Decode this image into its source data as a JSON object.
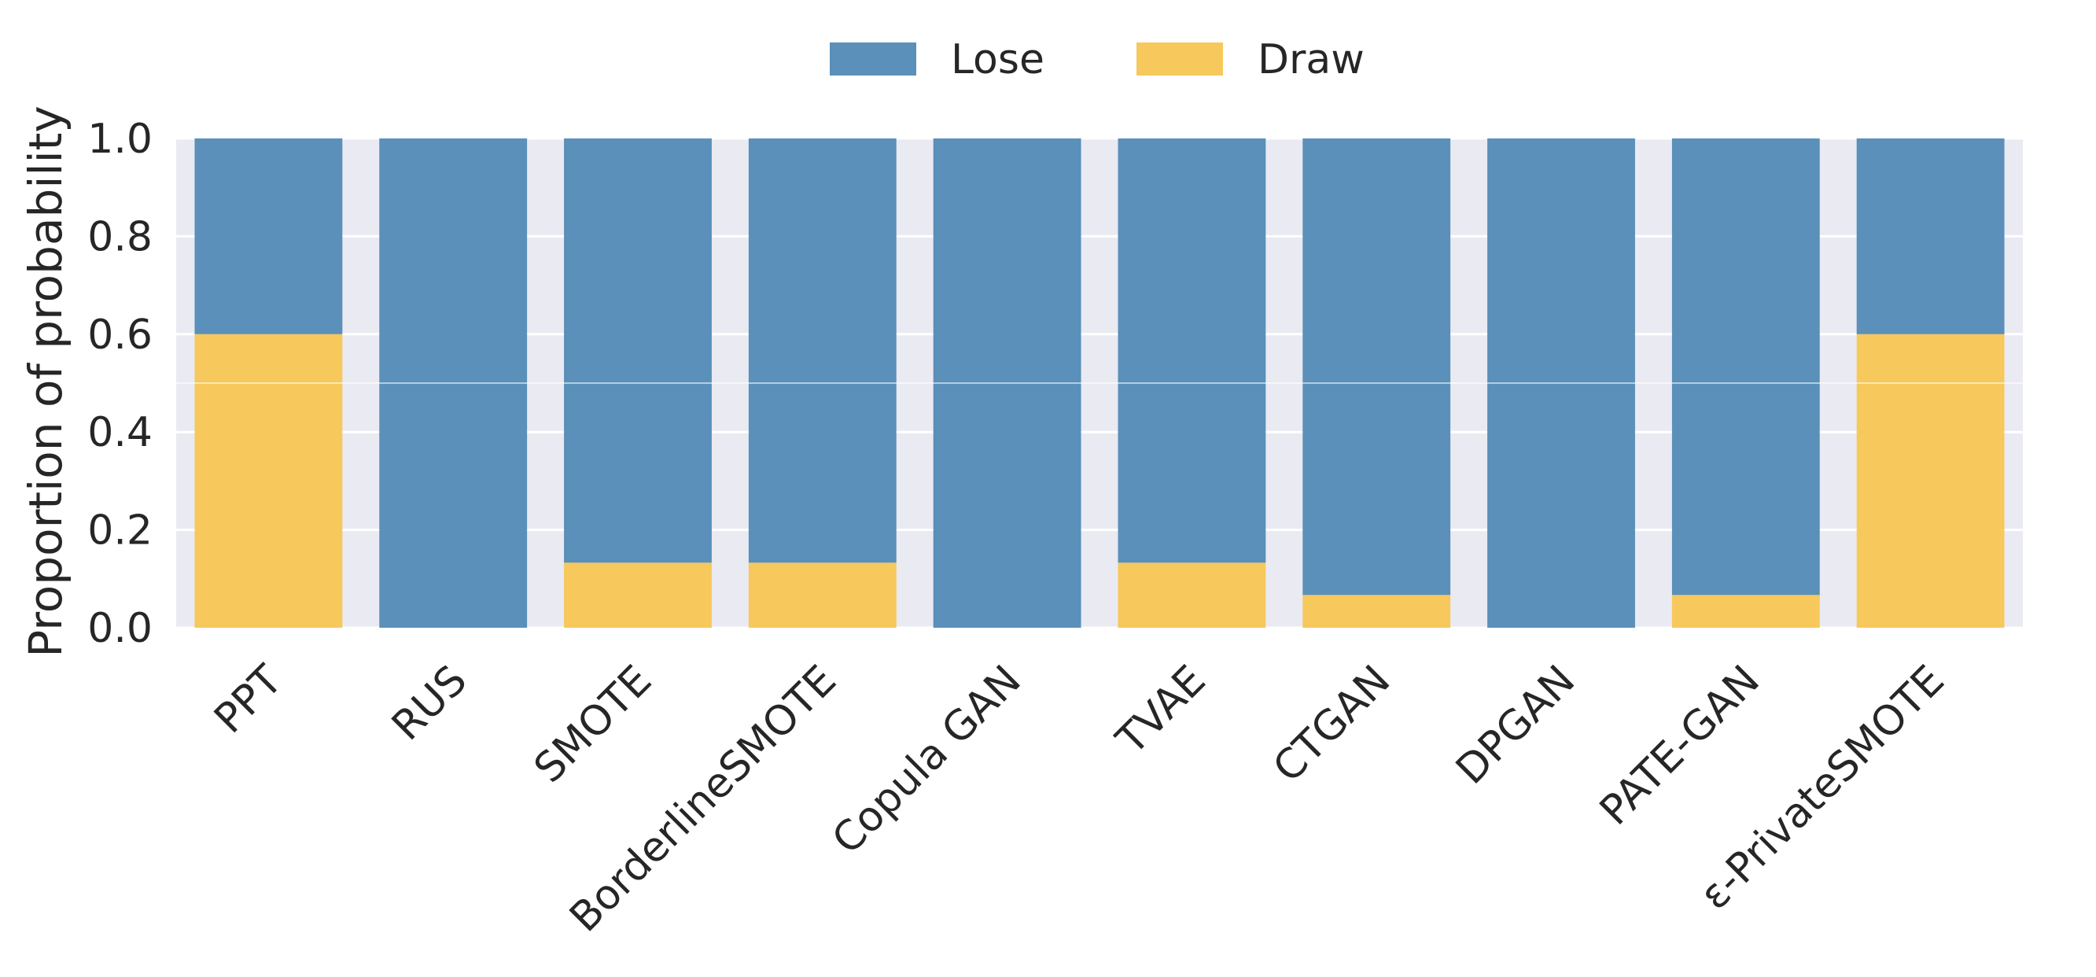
{
  "chart_data": {
    "type": "bar",
    "stacked": true,
    "categories": [
      "PPT",
      "RUS",
      "SMOTE",
      "BorderlineSMOTE",
      "Copula GAN",
      "TVAE",
      "CTGAN",
      "DPGAN",
      "PATE-GAN",
      "ε-PrivateSMOTE"
    ],
    "series": [
      {
        "name": "Draw",
        "color": "#f7c85c",
        "values": [
          0.6,
          0.0,
          0.133,
          0.133,
          0.0,
          0.133,
          0.067,
          0.0,
          0.067,
          0.6
        ]
      },
      {
        "name": "Lose",
        "color": "#5a90b9",
        "values": [
          0.4,
          1.0,
          0.867,
          0.867,
          1.0,
          0.867,
          0.933,
          1.0,
          0.933,
          0.4
        ]
      }
    ],
    "legend_order": [
      "Lose",
      "Draw"
    ],
    "legend_position": "top-center",
    "ylabel": "Proportion of probability",
    "xlabel": "",
    "ylim": [
      0.0,
      1.0
    ],
    "yticks": [
      "0.0",
      "0.2",
      "0.4",
      "0.6",
      "0.8",
      "1.0"
    ],
    "grid": true,
    "background": "#eaeaf2",
    "gridline_color": "#ffffff"
  }
}
